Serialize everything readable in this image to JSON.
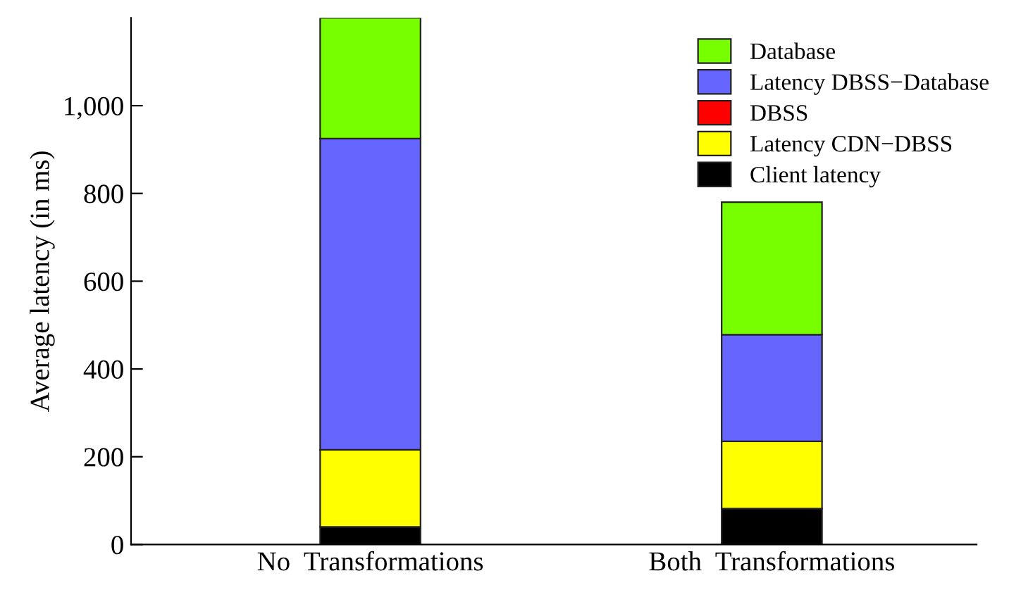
{
  "chart_data": {
    "type": "bar",
    "stacked": true,
    "ylabel": "Average latency (in ms)",
    "categories": [
      "No  Transformations",
      "Both  Transformations"
    ],
    "series": [
      {
        "name": "Client latency",
        "color": "#000000",
        "values": [
          40,
          82
        ]
      },
      {
        "name": "Latency CDN−DBSS",
        "color": "#ffff00",
        "values": [
          176,
          153
        ]
      },
      {
        "name": "DBSS",
        "color": "#ff0000",
        "values": [
          0,
          0
        ]
      },
      {
        "name": "Latency DBSS−Database",
        "color": "#6666ff",
        "values": [
          709,
          243
        ]
      },
      {
        "name": "Database",
        "color": "#77ff00",
        "values": [
          275,
          302
        ]
      }
    ],
    "ylim": [
      0,
      1200
    ],
    "yticks": [
      0,
      200,
      400,
      600,
      800,
      {
        "value": 1000,
        "label": "1,000"
      }
    ],
    "legend": "top right",
    "grid": false
  }
}
